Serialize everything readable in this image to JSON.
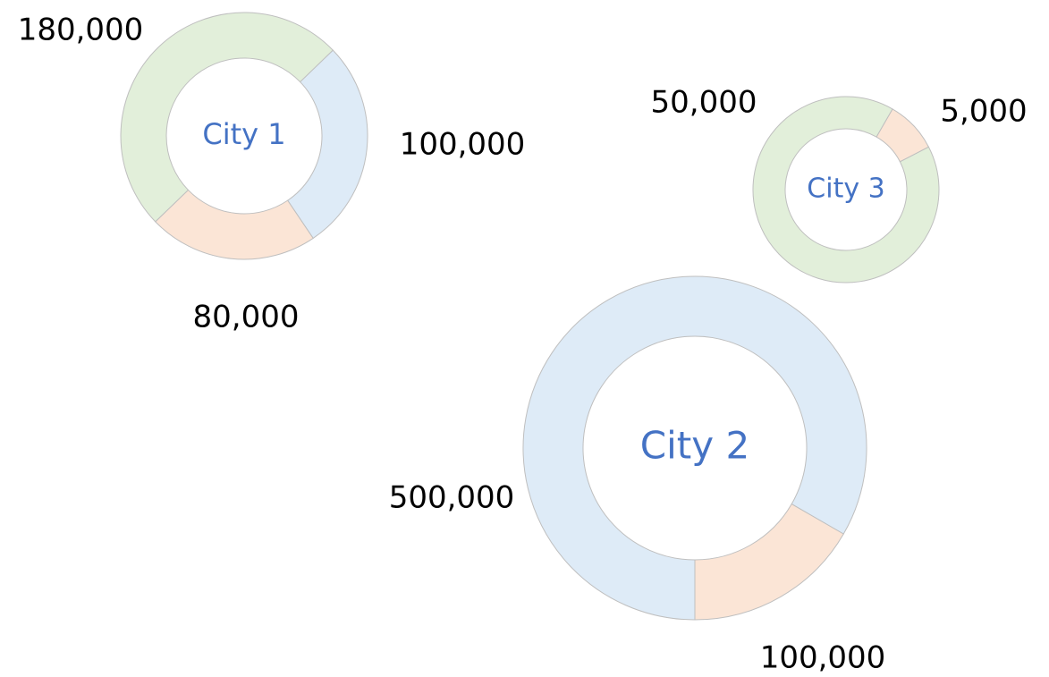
{
  "chart_data": [
    {
      "type": "donut",
      "title": "City 1",
      "values": [
        100000,
        80000,
        180000
      ],
      "value_labels": [
        "100,000",
        "80,000",
        "180,000"
      ],
      "colors": [
        "#deebf7",
        "#fbe5d6",
        "#e2efda"
      ]
    },
    {
      "type": "donut",
      "title": "City 2",
      "values": [
        100000,
        500000
      ],
      "value_labels": [
        "100,000",
        "500,000"
      ],
      "colors": [
        "#fbe5d6",
        "#deebf7"
      ]
    },
    {
      "type": "donut",
      "title": "City 3",
      "values": [
        5000,
        50000
      ],
      "value_labels": [
        "5,000",
        "50,000"
      ],
      "colors": [
        "#fbe5d6",
        "#e2efda"
      ]
    }
  ]
}
